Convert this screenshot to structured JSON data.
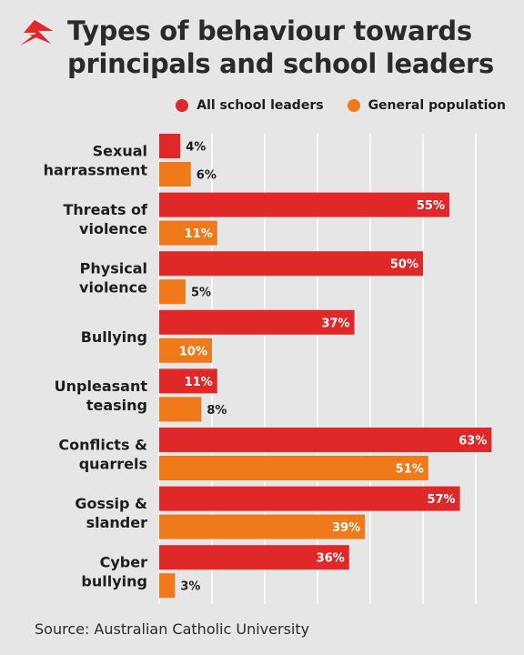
{
  "title_line1": "Types of behaviour towards",
  "title_line2": "principals and school leaders",
  "source": "Source: Australian Catholic University",
  "colors": {
    "all": "#e02828",
    "general": "#f07a1a",
    "background": "#e6e6e6",
    "grid": "#ffffff"
  },
  "chart_data": {
    "type": "bar",
    "orientation": "horizontal",
    "categories": [
      [
        "Sexual",
        "harrassment"
      ],
      [
        "Threats of",
        "violence"
      ],
      [
        "Physical",
        "violence"
      ],
      [
        "Bullying"
      ],
      [
        "Unpleasant",
        "teasing"
      ],
      [
        "Conflicts &",
        "quarrels"
      ],
      [
        "Gossip &",
        "slander"
      ],
      [
        "Cyber",
        "bullying"
      ]
    ],
    "series": [
      {
        "name": "All school leaders",
        "color": "#e02828",
        "values": [
          4,
          55,
          50,
          37,
          11,
          63,
          57,
          36
        ]
      },
      {
        "name": "General population",
        "color": "#f07a1a",
        "values": [
          6,
          11,
          5,
          10,
          8,
          51,
          39,
          3
        ]
      }
    ],
    "value_suffix": "%",
    "xlim": [
      0,
      65
    ],
    "legend_position": "top-right",
    "grid": true
  }
}
